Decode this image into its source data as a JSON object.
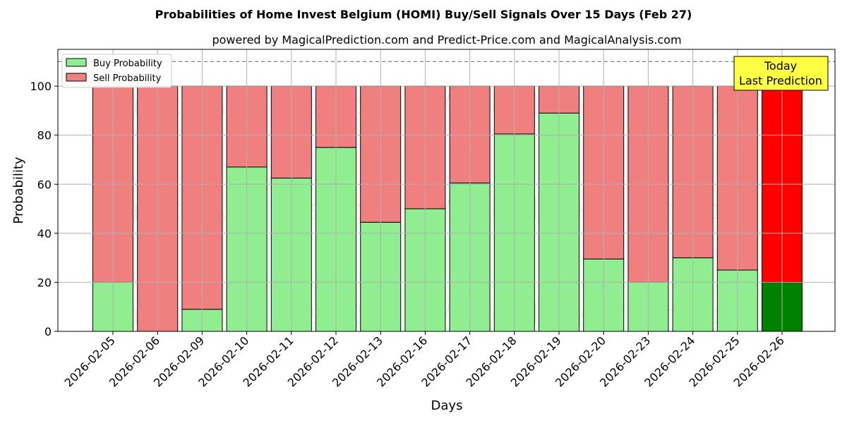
{
  "chart_data": {
    "type": "bar",
    "stacked": true,
    "title": "Probabilities of Home Invest Belgium (HOMI) Buy/Sell Signals Over 15 Days (Feb 27)",
    "subtitle": "powered by MagicalPrediction.com and Predict-Price.com and MagicalAnalysis.com",
    "xlabel": "Days",
    "ylabel": "Probability",
    "ylim": [
      0,
      115
    ],
    "yticks": [
      0,
      20,
      40,
      60,
      80,
      100
    ],
    "grid": true,
    "legend_placement": "top-left",
    "reference_line": 110,
    "categories": [
      "2026-02-05",
      "2026-02-06",
      "2026-02-09",
      "2026-02-10",
      "2026-02-11",
      "2026-02-12",
      "2026-02-13",
      "2026-02-16",
      "2026-02-17",
      "2026-02-18",
      "2026-02-19",
      "2026-02-20",
      "2026-02-23",
      "2026-02-24",
      "2026-02-25",
      "2026-02-26"
    ],
    "series": [
      {
        "name": "Buy Probability",
        "values": [
          20,
          0,
          9,
          67,
          62.5,
          75,
          44.5,
          50,
          60.5,
          80.5,
          89,
          29.5,
          20,
          30,
          25,
          20
        ],
        "color": "#90ee90",
        "highlight_color": "#008000"
      },
      {
        "name": "Sell Probability",
        "values": [
          80,
          100,
          91,
          33,
          37.5,
          25,
          55.5,
          50,
          39.5,
          19.5,
          11,
          70.5,
          80,
          70,
          75,
          80
        ],
        "color": "#f08080",
        "highlight_color": "#ff0000"
      }
    ],
    "highlight_index": 15,
    "annotation": {
      "line1": "Today",
      "line2": "Last Prediction",
      "color": "#ffff44"
    },
    "watermarks": [
      "MagicalAnalysis.com",
      "MagicalPrediction.com"
    ]
  }
}
